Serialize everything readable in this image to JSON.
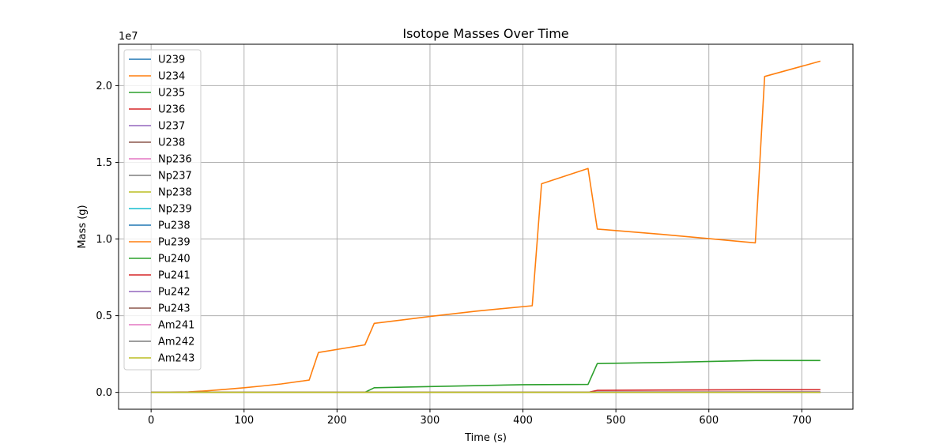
{
  "chart_data": {
    "type": "line",
    "title": "Isotope Masses Over Time",
    "xlabel": "Time (s)",
    "ylabel": "Mass (g)",
    "y_offset_text": "1e7",
    "xlim": [
      -35,
      755
    ],
    "ylim": [
      -1100000,
      22700000
    ],
    "xticks": [
      0,
      100,
      200,
      300,
      400,
      500,
      600,
      700
    ],
    "xtick_labels": [
      "0",
      "100",
      "200",
      "300",
      "400",
      "500",
      "600",
      "700"
    ],
    "yticks": [
      0,
      5000000,
      10000000,
      15000000,
      20000000
    ],
    "ytick_labels": [
      "0.0",
      "0.5",
      "1.0",
      "1.5",
      "2.0"
    ],
    "grid": true,
    "legend_position": "top-left",
    "series": [
      {
        "name": "U239",
        "color": "#1f77b4",
        "x": [
          0,
          720
        ],
        "y": [
          0,
          0
        ]
      },
      {
        "name": "U234",
        "color": "#ff7f0e",
        "x": [
          0,
          720
        ],
        "y": [
          0,
          0
        ]
      },
      {
        "name": "U235",
        "color": "#2ca02c",
        "x": [
          0,
          720
        ],
        "y": [
          0,
          0
        ]
      },
      {
        "name": "U236",
        "color": "#d62728",
        "x": [
          0,
          720
        ],
        "y": [
          0,
          0
        ]
      },
      {
        "name": "U237",
        "color": "#9467bd",
        "x": [
          0,
          720
        ],
        "y": [
          0,
          0
        ]
      },
      {
        "name": "U238",
        "color": "#8c564b",
        "x": [
          0,
          720
        ],
        "y": [
          0,
          0
        ]
      },
      {
        "name": "Np236",
        "color": "#e377c2",
        "x": [
          0,
          720
        ],
        "y": [
          0,
          0
        ]
      },
      {
        "name": "Np237",
        "color": "#7f7f7f",
        "x": [
          0,
          720
        ],
        "y": [
          0,
          0
        ]
      },
      {
        "name": "Np238",
        "color": "#bcbd22",
        "x": [
          0,
          720
        ],
        "y": [
          0,
          0
        ]
      },
      {
        "name": "Np239",
        "color": "#17becf",
        "x": [
          0,
          720
        ],
        "y": [
          0,
          0
        ]
      },
      {
        "name": "Pu238",
        "color": "#1f77b4",
        "x": [
          0,
          720
        ],
        "y": [
          0,
          0
        ]
      },
      {
        "name": "Pu239",
        "color": "#ff7f0e",
        "x": [
          0,
          40,
          60,
          80,
          100,
          120,
          140,
          170,
          180,
          230,
          240,
          300,
          350,
          410,
          420,
          470,
          480,
          550,
          650,
          660,
          720
        ],
        "y": [
          0,
          30000,
          100000,
          200000,
          300000,
          420000,
          550000,
          800000,
          2600000,
          3100000,
          4500000,
          4950000,
          5300000,
          5650000,
          13600000,
          14600000,
          10650000,
          10300000,
          9750000,
          20600000,
          21600000
        ]
      },
      {
        "name": "Pu240",
        "color": "#2ca02c",
        "x": [
          0,
          230,
          240,
          300,
          400,
          470,
          480,
          550,
          650,
          720
        ],
        "y": [
          0,
          0,
          300000,
          380000,
          500000,
          520000,
          1880000,
          1950000,
          2080000,
          2080000
        ]
      },
      {
        "name": "Pu241",
        "color": "#d62728",
        "x": [
          0,
          470,
          480,
          550,
          650,
          720
        ],
        "y": [
          0,
          0,
          130000,
          150000,
          170000,
          170000
        ]
      },
      {
        "name": "Pu242",
        "color": "#9467bd",
        "x": [
          0,
          470,
          480,
          720
        ],
        "y": [
          0,
          0,
          30000,
          40000
        ]
      },
      {
        "name": "Pu243",
        "color": "#8c564b",
        "x": [
          0,
          720
        ],
        "y": [
          0,
          0
        ]
      },
      {
        "name": "Am241",
        "color": "#e377c2",
        "x": [
          0,
          720
        ],
        "y": [
          0,
          0
        ]
      },
      {
        "name": "Am242",
        "color": "#7f7f7f",
        "x": [
          0,
          720
        ],
        "y": [
          0,
          0
        ]
      },
      {
        "name": "Am243",
        "color": "#bcbd22",
        "x": [
          0,
          720
        ],
        "y": [
          0,
          0
        ]
      }
    ]
  }
}
